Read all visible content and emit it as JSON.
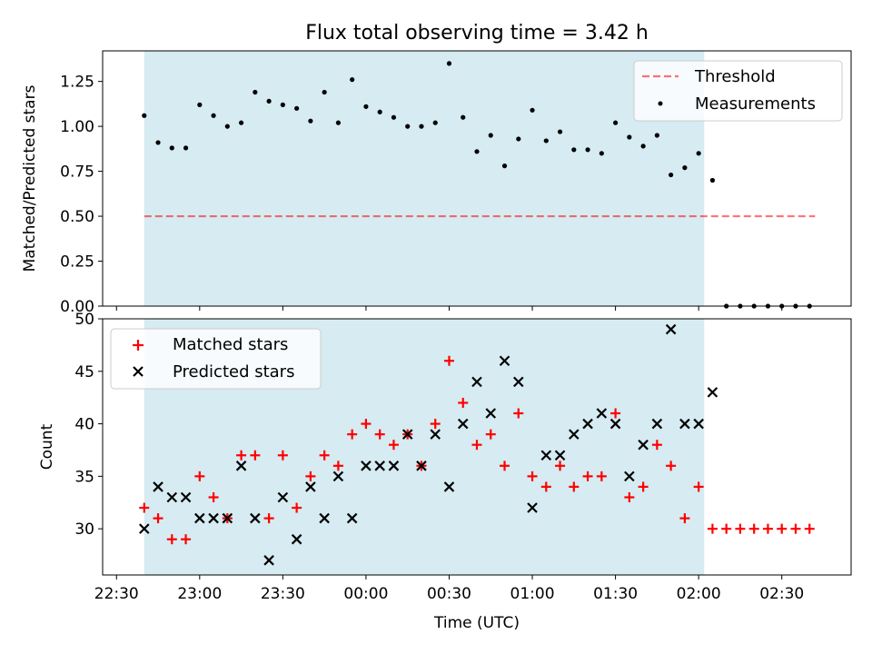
{
  "figure_title": "Flux total observing time = 3.42 h",
  "colors": {
    "shade": "#add8e6",
    "threshold": "#ff0000",
    "measurement": "#000000",
    "matched": "#ff0000",
    "predicted": "#000000"
  },
  "chart_data": [
    {
      "type": "scatter",
      "title": "Flux total observing time = 3.42 h",
      "xlabel": "",
      "ylabel": "Matched/Predicted stars",
      "ylim": [
        0,
        1.42
      ],
      "yticks": [
        "0.00",
        "0.25",
        "0.50",
        "0.75",
        "1.00",
        "1.25"
      ],
      "ytick_values": [
        0,
        0.25,
        0.5,
        0.75,
        1.0,
        1.25
      ],
      "shaded_span": [
        "22:40",
        "02:02"
      ],
      "threshold": {
        "name": "Threshold",
        "value": 0.5,
        "x_range": [
          "22:40",
          "02:42"
        ]
      },
      "legend_position": "upper right",
      "series": [
        {
          "name": "Measurements",
          "x": [
            "22:40",
            "22:45",
            "22:50",
            "22:55",
            "23:00",
            "23:05",
            "23:10",
            "23:15",
            "23:20",
            "23:25",
            "23:30",
            "23:35",
            "23:40",
            "23:45",
            "23:50",
            "23:55",
            "00:00",
            "00:05",
            "00:10",
            "00:15",
            "00:20",
            "00:25",
            "00:30",
            "00:35",
            "00:40",
            "00:45",
            "00:50",
            "00:55",
            "01:00",
            "01:05",
            "01:10",
            "01:15",
            "01:20",
            "01:25",
            "01:30",
            "01:35",
            "01:40",
            "01:45",
            "01:50",
            "01:55",
            "02:00",
            "02:05",
            "02:10",
            "02:15",
            "02:20",
            "02:25",
            "02:30",
            "02:35",
            "02:40"
          ],
          "y": [
            1.06,
            0.91,
            0.88,
            0.88,
            1.12,
            1.06,
            1.0,
            1.02,
            1.19,
            1.14,
            1.12,
            1.1,
            1.03,
            1.19,
            1.02,
            1.26,
            1.11,
            1.08,
            1.05,
            1.0,
            1.0,
            1.02,
            1.35,
            1.05,
            0.86,
            0.95,
            0.78,
            0.93,
            1.09,
            0.92,
            0.97,
            0.87,
            0.87,
            0.85,
            1.02,
            0.94,
            0.89,
            0.95,
            0.73,
            0.77,
            0.85,
            0.7,
            0.0,
            0.0,
            0.0,
            0.0,
            0.0,
            0.0,
            0.0
          ]
        }
      ]
    },
    {
      "type": "scatter",
      "xlabel": "Time (UTC)",
      "ylabel": "Count",
      "ylim": [
        25.6,
        50
      ],
      "yticks": [
        "30",
        "35",
        "40",
        "45",
        "50"
      ],
      "ytick_values": [
        30,
        35,
        40,
        45,
        50
      ],
      "xlim": [
        "22:25",
        "02:55"
      ],
      "xticks": [
        "22:30",
        "23:00",
        "23:30",
        "00:00",
        "00:30",
        "01:00",
        "01:30",
        "02:00",
        "02:30"
      ],
      "legend_position": "upper left",
      "series": [
        {
          "name": "Matched stars",
          "x": [
            "22:40",
            "22:45",
            "22:50",
            "22:55",
            "23:00",
            "23:05",
            "23:10",
            "23:15",
            "23:20",
            "23:25",
            "23:30",
            "23:35",
            "23:40",
            "23:45",
            "23:50",
            "23:55",
            "00:00",
            "00:05",
            "00:10",
            "00:15",
            "00:20",
            "00:25",
            "00:30",
            "00:35",
            "00:40",
            "00:45",
            "00:50",
            "00:55",
            "01:00",
            "01:05",
            "01:10",
            "01:15",
            "01:20",
            "01:25",
            "01:30",
            "01:35",
            "01:40",
            "01:45",
            "01:50",
            "01:55",
            "02:00",
            "02:05",
            "02:10",
            "02:15",
            "02:20",
            "02:25",
            "02:30",
            "02:35",
            "02:40"
          ],
          "y": [
            32,
            31,
            29,
            29,
            35,
            33,
            31,
            37,
            37,
            31,
            37,
            32,
            35,
            37,
            36,
            39,
            40,
            39,
            38,
            39,
            36,
            40,
            46,
            42,
            38,
            39,
            36,
            41,
            35,
            34,
            36,
            34,
            35,
            35,
            41,
            33,
            34,
            38,
            36,
            31,
            34,
            30,
            30,
            30,
            30,
            30,
            30,
            30,
            30
          ]
        },
        {
          "name": "Predicted stars",
          "x": [
            "22:40",
            "22:45",
            "22:50",
            "22:55",
            "23:00",
            "23:05",
            "23:10",
            "23:15",
            "23:20",
            "23:25",
            "23:30",
            "23:35",
            "23:40",
            "23:45",
            "23:50",
            "23:55",
            "00:00",
            "00:05",
            "00:10",
            "00:15",
            "00:20",
            "00:25",
            "00:30",
            "00:35",
            "00:40",
            "00:45",
            "00:50",
            "00:55",
            "01:00",
            "01:05",
            "01:10",
            "01:15",
            "01:20",
            "01:25",
            "01:30",
            "01:35",
            "01:40",
            "01:45",
            "01:50",
            "01:55",
            "02:00",
            "02:05"
          ],
          "y": [
            30,
            34,
            33,
            33,
            31,
            31,
            31,
            36,
            31,
            27,
            33,
            29,
            34,
            31,
            35,
            31,
            36,
            36,
            36,
            39,
            36,
            39,
            34,
            40,
            44,
            41,
            46,
            44,
            32,
            37,
            37,
            39,
            40,
            41,
            40,
            35,
            38,
            40,
            49,
            40,
            40,
            43
          ]
        }
      ]
    }
  ]
}
